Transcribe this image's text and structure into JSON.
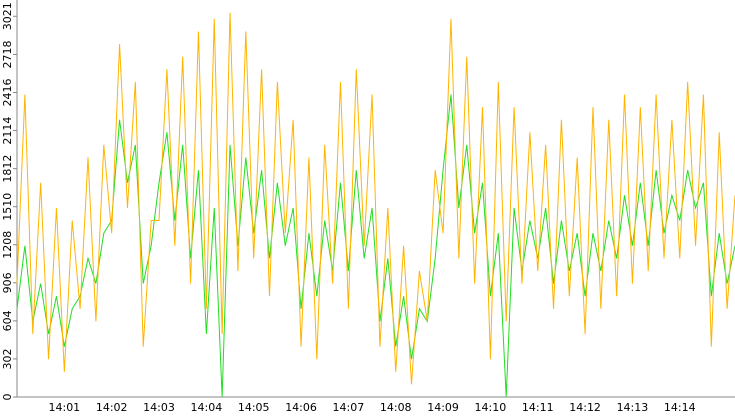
{
  "chart_data": {
    "type": "line",
    "categories": [
      null,
      null,
      null,
      null,
      null,
      null,
      "14:01",
      null,
      null,
      null,
      null,
      null,
      "14:02",
      null,
      null,
      null,
      null,
      null,
      "14:03",
      null,
      null,
      null,
      null,
      null,
      "14:04",
      null,
      null,
      null,
      null,
      null,
      "14:05",
      null,
      null,
      null,
      null,
      null,
      "14:06",
      null,
      null,
      null,
      null,
      null,
      "14:07",
      null,
      null,
      null,
      null,
      null,
      "14:08",
      null,
      null,
      null,
      null,
      null,
      "14:09",
      null,
      null,
      null,
      null,
      null,
      "14:10",
      null,
      null,
      null,
      null,
      null,
      "14:11",
      null,
      null,
      null,
      null,
      null,
      "14:12",
      null,
      null,
      null,
      null,
      null,
      "14:13",
      null,
      null,
      null,
      null,
      null,
      "14:14",
      null,
      null,
      null,
      null,
      null,
      null,
      null
    ],
    "series": [
      {
        "color": "#22dd22",
        "values": [
          700,
          1200,
          600,
          900,
          500,
          800,
          400,
          700,
          800,
          1100,
          900,
          1300,
          1400,
          2200,
          1700,
          2000,
          900,
          1200,
          1700,
          2100,
          1400,
          2000,
          1100,
          1800,
          500,
          1500,
          0,
          2000,
          1200,
          1900,
          1300,
          1800,
          1100,
          1700,
          1200,
          1500,
          700,
          1300,
          800,
          1400,
          1000,
          1700,
          1000,
          1800,
          1100,
          1500,
          600,
          1100,
          400,
          800,
          300,
          700,
          600,
          1100,
          1800,
          2400,
          1500,
          2000,
          1300,
          1700,
          800,
          1300,
          0,
          1500,
          1000,
          1400,
          1100,
          1500,
          900,
          1400,
          1000,
          1300,
          800,
          1300,
          1000,
          1400,
          1100,
          1600,
          1200,
          1700,
          1200,
          1800,
          1300,
          1600,
          1400,
          1800,
          1500,
          1700,
          800,
          1300,
          900,
          1200
        ]
      },
      {
        "color": "#ffb400",
        "values": [
          900,
          2400,
          500,
          1700,
          300,
          1500,
          200,
          1400,
          700,
          1900,
          600,
          2000,
          1300,
          2800,
          1500,
          2500,
          400,
          1400,
          1400,
          2600,
          1200,
          2700,
          900,
          2900,
          700,
          3000,
          500,
          3050,
          1000,
          2900,
          1100,
          2600,
          800,
          2500,
          1300,
          2200,
          400,
          1900,
          300,
          2000,
          900,
          2500,
          700,
          2600,
          1200,
          2400,
          400,
          1500,
          200,
          1200,
          100,
          1000,
          600,
          1800,
          1300,
          3000,
          1100,
          2700,
          900,
          2300,
          300,
          2500,
          600,
          2300,
          900,
          2100,
          1000,
          2000,
          700,
          2200,
          800,
          1900,
          500,
          2300,
          700,
          2200,
          800,
          2400,
          900,
          2300,
          1000,
          2400,
          1100,
          2200,
          1100,
          2500,
          1200,
          2400,
          400,
          2100,
          700,
          1600
        ]
      }
    ],
    "ylim": [
      0,
      3150
    ],
    "yticks": [
      0,
      302,
      604,
      906,
      1208,
      1510,
      1812,
      2114,
      2416,
      2718,
      3021
    ]
  }
}
